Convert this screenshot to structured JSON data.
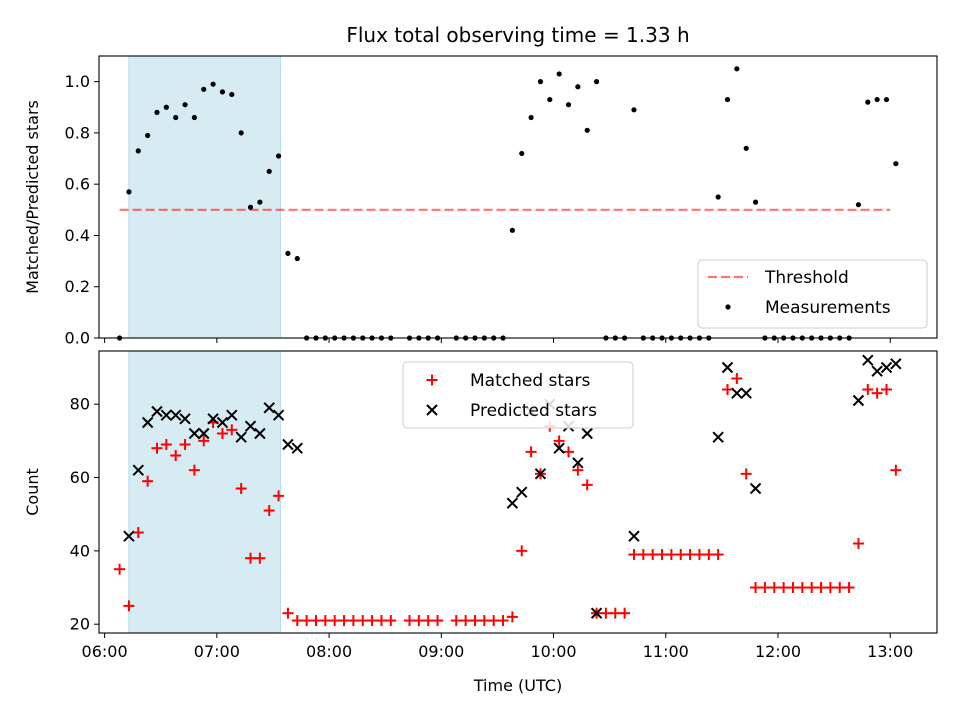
{
  "figure": {
    "title": "Flux total observing time = 1.33 h",
    "xlabel": "Time (UTC)"
  },
  "colors": {
    "shade": "#add8e6",
    "threshold": "#ff0000",
    "measurements": "#000000",
    "matched": "#ff0000",
    "predicted": "#000000"
  },
  "chart_data": [
    {
      "type": "scatter",
      "ylabel": "Matched/Predicted stars",
      "xlim": [
        "05:57",
        "13:25"
      ],
      "ylim": [
        0,
        1.1
      ],
      "x_ticks": [
        "06:00",
        "07:00",
        "08:00",
        "09:00",
        "10:00",
        "11:00",
        "12:00",
        "13:00"
      ],
      "y_ticks": [
        "0.0",
        "0.2",
        "0.4",
        "0.6",
        "0.8",
        "1.0"
      ],
      "y_tick_values": [
        0,
        0.2,
        0.4,
        0.6,
        0.8,
        1.0
      ],
      "shaded_span": [
        "06:13",
        "07:34"
      ],
      "legend_position": "lower right",
      "threshold": {
        "name": "Threshold",
        "y": 0.5,
        "x_range": [
          "06:08",
          "13:00"
        ]
      },
      "series": [
        {
          "name": "Measurements",
          "points": [
            [
              "06:08",
              0.0
            ],
            [
              "06:13",
              0.57
            ],
            [
              "06:18",
              0.73
            ],
            [
              "06:23",
              0.79
            ],
            [
              "06:28",
              0.88
            ],
            [
              "06:33",
              0.9
            ],
            [
              "06:38",
              0.86
            ],
            [
              "06:43",
              0.91
            ],
            [
              "06:48",
              0.86
            ],
            [
              "06:53",
              0.97
            ],
            [
              "06:58",
              0.99
            ],
            [
              "07:03",
              0.96
            ],
            [
              "07:08",
              0.95
            ],
            [
              "07:13",
              0.8
            ],
            [
              "07:18",
              0.51
            ],
            [
              "07:23",
              0.53
            ],
            [
              "07:28",
              0.65
            ],
            [
              "07:33",
              0.71
            ],
            [
              "07:38",
              0.33
            ],
            [
              "07:43",
              0.31
            ],
            [
              "07:48",
              0.0
            ],
            [
              "07:53",
              0.0
            ],
            [
              "07:58",
              0.0
            ],
            [
              "08:03",
              0.0
            ],
            [
              "08:08",
              0.0
            ],
            [
              "08:13",
              0.0
            ],
            [
              "08:18",
              0.0
            ],
            [
              "08:23",
              0.0
            ],
            [
              "08:28",
              0.0
            ],
            [
              "08:33",
              0.0
            ],
            [
              "08:43",
              0.0
            ],
            [
              "08:48",
              0.0
            ],
            [
              "08:53",
              0.0
            ],
            [
              "08:58",
              0.0
            ],
            [
              "09:08",
              0.0
            ],
            [
              "09:13",
              0.0
            ],
            [
              "09:18",
              0.0
            ],
            [
              "09:23",
              0.0
            ],
            [
              "09:28",
              0.0
            ],
            [
              "09:33",
              0.0
            ],
            [
              "09:38",
              0.42
            ],
            [
              "09:43",
              0.72
            ],
            [
              "09:48",
              0.86
            ],
            [
              "09:53",
              1.0
            ],
            [
              "09:58",
              0.93
            ],
            [
              "10:03",
              1.03
            ],
            [
              "10:08",
              0.91
            ],
            [
              "10:13",
              0.98
            ],
            [
              "10:18",
              0.81
            ],
            [
              "10:23",
              1.0
            ],
            [
              "10:28",
              0.0
            ],
            [
              "10:33",
              0.0
            ],
            [
              "10:38",
              0.0
            ],
            [
              "10:43",
              0.89
            ],
            [
              "10:48",
              0.0
            ],
            [
              "10:53",
              0.0
            ],
            [
              "10:58",
              0.0
            ],
            [
              "11:03",
              0.0
            ],
            [
              "11:08",
              0.0
            ],
            [
              "11:13",
              0.0
            ],
            [
              "11:18",
              0.0
            ],
            [
              "11:23",
              0.0
            ],
            [
              "11:28",
              0.55
            ],
            [
              "11:33",
              0.93
            ],
            [
              "11:38",
              1.05
            ],
            [
              "11:43",
              0.74
            ],
            [
              "11:48",
              0.53
            ],
            [
              "11:53",
              0.0
            ],
            [
              "11:58",
              0.0
            ],
            [
              "12:03",
              0.0
            ],
            [
              "12:08",
              0.0
            ],
            [
              "12:13",
              0.0
            ],
            [
              "12:18",
              0.0
            ],
            [
              "12:23",
              0.0
            ],
            [
              "12:28",
              0.0
            ],
            [
              "12:33",
              0.0
            ],
            [
              "12:38",
              0.0
            ],
            [
              "12:43",
              0.52
            ],
            [
              "12:48",
              0.92
            ],
            [
              "12:53",
              0.93
            ],
            [
              "12:58",
              0.93
            ],
            [
              "13:03",
              0.68
            ]
          ]
        }
      ]
    },
    {
      "type": "scatter",
      "ylabel": "Count",
      "xlim": [
        "05:57",
        "13:25"
      ],
      "ylim": [
        17.6,
        94.5
      ],
      "x_ticks": [
        "06:00",
        "07:00",
        "08:00",
        "09:00",
        "10:00",
        "11:00",
        "12:00",
        "13:00"
      ],
      "y_ticks": [
        "20",
        "40",
        "60",
        "80"
      ],
      "y_tick_values": [
        20,
        40,
        60,
        80
      ],
      "shaded_span": [
        "06:13",
        "07:34"
      ],
      "legend_position": "upper center",
      "series": [
        {
          "name": "Matched stars",
          "marker": "+",
          "points": [
            [
              "06:08",
              35
            ],
            [
              "06:13",
              25
            ],
            [
              "06:18",
              45
            ],
            [
              "06:23",
              59
            ],
            [
              "06:28",
              68
            ],
            [
              "06:33",
              69
            ],
            [
              "06:38",
              66
            ],
            [
              "06:43",
              69
            ],
            [
              "06:48",
              62
            ],
            [
              "06:53",
              70
            ],
            [
              "06:58",
              75
            ],
            [
              "07:03",
              72
            ],
            [
              "07:08",
              73
            ],
            [
              "07:13",
              57
            ],
            [
              "07:18",
              38
            ],
            [
              "07:23",
              38
            ],
            [
              "07:28",
              51
            ],
            [
              "07:33",
              55
            ],
            [
              "07:38",
              23
            ],
            [
              "07:43",
              21
            ],
            [
              "07:48",
              21
            ],
            [
              "07:53",
              21
            ],
            [
              "07:58",
              21
            ],
            [
              "08:03",
              21
            ],
            [
              "08:08",
              21
            ],
            [
              "08:13",
              21
            ],
            [
              "08:18",
              21
            ],
            [
              "08:23",
              21
            ],
            [
              "08:28",
              21
            ],
            [
              "08:33",
              21
            ],
            [
              "08:43",
              21
            ],
            [
              "08:48",
              21
            ],
            [
              "08:53",
              21
            ],
            [
              "08:58",
              21
            ],
            [
              "09:08",
              21
            ],
            [
              "09:13",
              21
            ],
            [
              "09:18",
              21
            ],
            [
              "09:23",
              21
            ],
            [
              "09:28",
              21
            ],
            [
              "09:33",
              21
            ],
            [
              "09:38",
              22
            ],
            [
              "09:43",
              40
            ],
            [
              "09:48",
              67
            ],
            [
              "09:53",
              61
            ],
            [
              "09:58",
              74
            ],
            [
              "10:03",
              70
            ],
            [
              "10:08",
              67
            ],
            [
              "10:13",
              62
            ],
            [
              "10:18",
              58
            ],
            [
              "10:23",
              23
            ],
            [
              "10:28",
              23
            ],
            [
              "10:33",
              23
            ],
            [
              "10:38",
              23
            ],
            [
              "10:43",
              39
            ],
            [
              "10:48",
              39
            ],
            [
              "10:53",
              39
            ],
            [
              "10:58",
              39
            ],
            [
              "11:03",
              39
            ],
            [
              "11:08",
              39
            ],
            [
              "11:13",
              39
            ],
            [
              "11:18",
              39
            ],
            [
              "11:23",
              39
            ],
            [
              "11:28",
              39
            ],
            [
              "11:33",
              84
            ],
            [
              "11:38",
              87
            ],
            [
              "11:43",
              61
            ],
            [
              "11:48",
              30
            ],
            [
              "11:53",
              30
            ],
            [
              "11:58",
              30
            ],
            [
              "12:03",
              30
            ],
            [
              "12:08",
              30
            ],
            [
              "12:13",
              30
            ],
            [
              "12:18",
              30
            ],
            [
              "12:23",
              30
            ],
            [
              "12:28",
              30
            ],
            [
              "12:33",
              30
            ],
            [
              "12:38",
              30
            ],
            [
              "12:43",
              42
            ],
            [
              "12:48",
              84
            ],
            [
              "12:53",
              83
            ],
            [
              "12:58",
              84
            ],
            [
              "13:03",
              62
            ]
          ]
        },
        {
          "name": "Predicted stars",
          "marker": "x",
          "points": [
            [
              "06:13",
              44
            ],
            [
              "06:18",
              62
            ],
            [
              "06:23",
              75
            ],
            [
              "06:28",
              78
            ],
            [
              "06:33",
              77
            ],
            [
              "06:38",
              77
            ],
            [
              "06:43",
              76
            ],
            [
              "06:48",
              72
            ],
            [
              "06:53",
              72
            ],
            [
              "06:58",
              76
            ],
            [
              "07:03",
              75
            ],
            [
              "07:08",
              77
            ],
            [
              "07:13",
              71
            ],
            [
              "07:18",
              74
            ],
            [
              "07:23",
              72
            ],
            [
              "07:28",
              79
            ],
            [
              "07:33",
              77
            ],
            [
              "07:38",
              69
            ],
            [
              "07:43",
              68
            ],
            [
              "09:38",
              53
            ],
            [
              "09:43",
              56
            ],
            [
              "09:48",
              78
            ],
            [
              "09:53",
              61
            ],
            [
              "09:58",
              80
            ],
            [
              "10:03",
              68
            ],
            [
              "10:08",
              74
            ],
            [
              "10:13",
              64
            ],
            [
              "10:18",
              72
            ],
            [
              "10:23",
              23
            ],
            [
              "10:43",
              44
            ],
            [
              "11:28",
              71
            ],
            [
              "11:33",
              90
            ],
            [
              "11:38",
              83
            ],
            [
              "11:43",
              83
            ],
            [
              "11:48",
              57
            ],
            [
              "12:43",
              81
            ],
            [
              "12:48",
              92
            ],
            [
              "12:53",
              89
            ],
            [
              "12:58",
              90
            ],
            [
              "13:03",
              91
            ]
          ]
        }
      ]
    }
  ]
}
